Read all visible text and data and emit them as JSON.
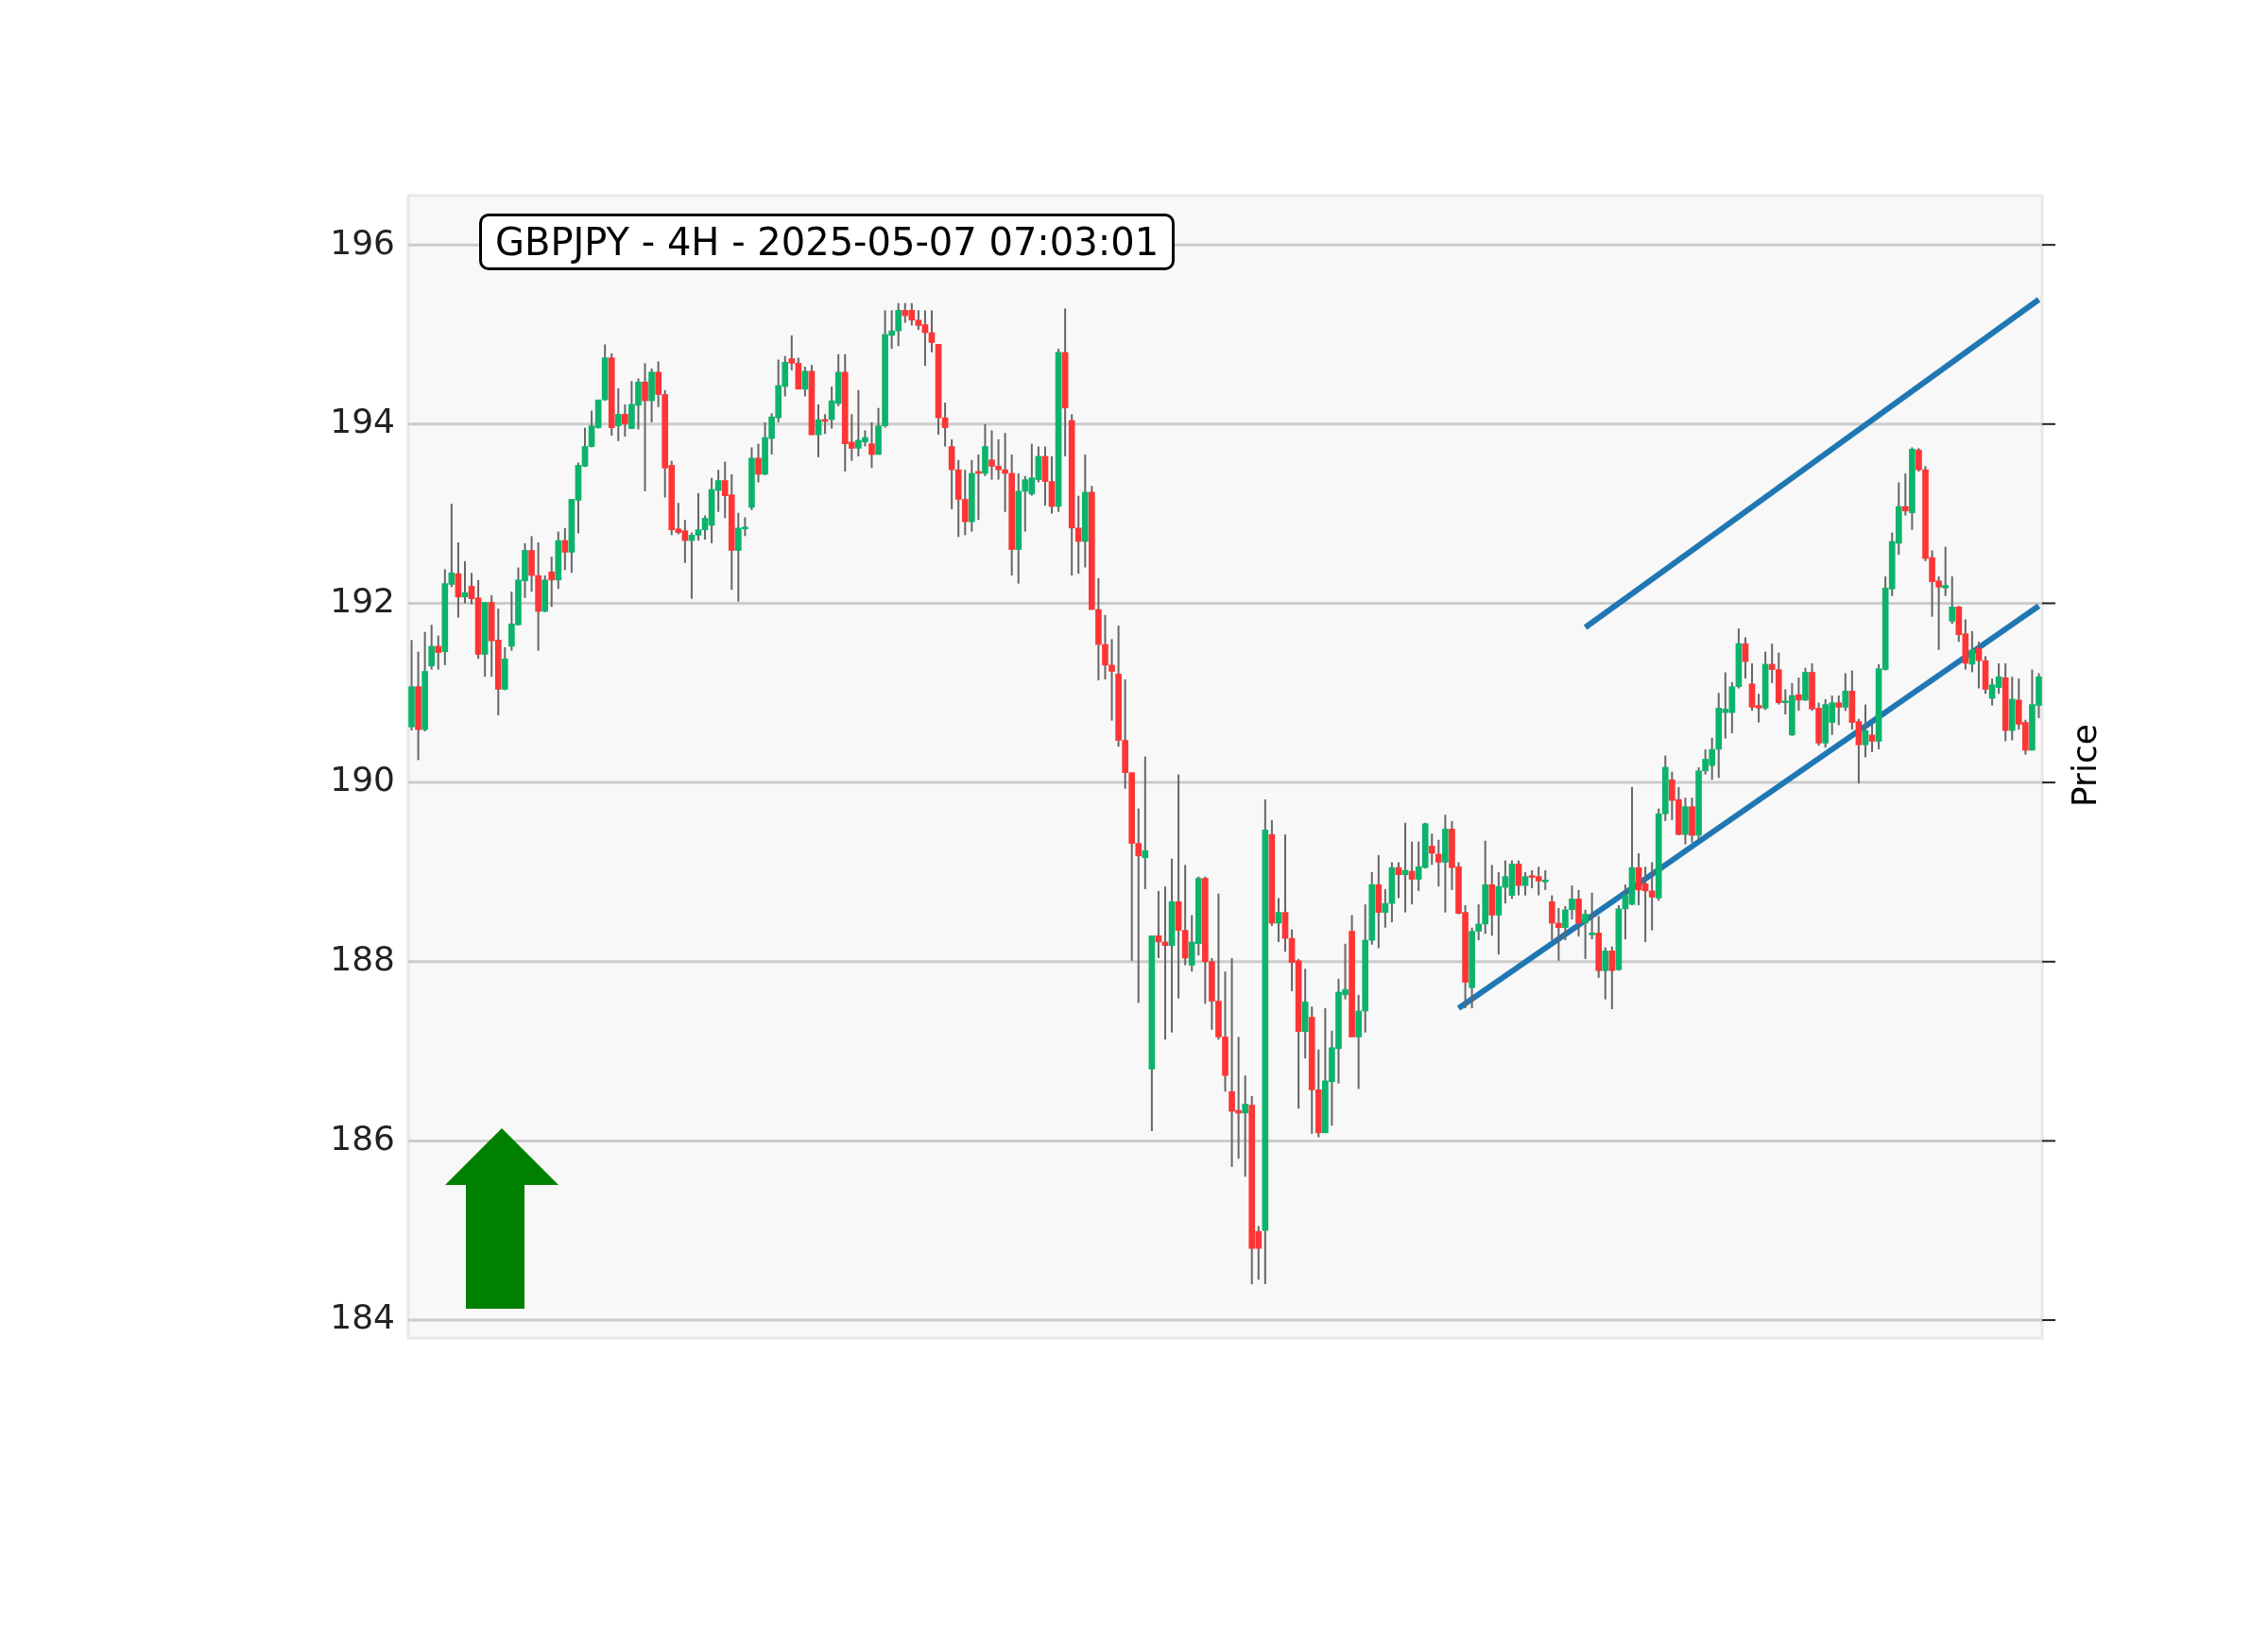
{
  "chart_data": {
    "type": "candlestick",
    "title": "GBPJPY - 4H - 2025-05-07 07:03:01",
    "categories": [
      null,
      null,
      null,
      null,
      null,
      null,
      null,
      null,
      null,
      null,
      null,
      null,
      null,
      null,
      null,
      null,
      null,
      null,
      null,
      null,
      null,
      null,
      null,
      null,
      null,
      null,
      null,
      null,
      null,
      null,
      null,
      null,
      null,
      null,
      null,
      null,
      null,
      null,
      null,
      null,
      null,
      null,
      null,
      null,
      null,
      null,
      null,
      null,
      null,
      null,
      null,
      null,
      null,
      null,
      null,
      null,
      null,
      null,
      null,
      null,
      null,
      null,
      null,
      null,
      null,
      null,
      null,
      null,
      null,
      null,
      null,
      null,
      null,
      null,
      null,
      null,
      null,
      null,
      null,
      null,
      null,
      null,
      null,
      null,
      null,
      null,
      null,
      null,
      null,
      null,
      null,
      null,
      null,
      null,
      null,
      null,
      null,
      null,
      null,
      null,
      null,
      null,
      null,
      null,
      null,
      null,
      null,
      null,
      null,
      null,
      null,
      null,
      null,
      null,
      null,
      null,
      null,
      null,
      null,
      null,
      null,
      null,
      null,
      null,
      null,
      null,
      null,
      null,
      null,
      null,
      null,
      null,
      null,
      null,
      null,
      null,
      null,
      null,
      null,
      null,
      null,
      null,
      null,
      null,
      null,
      null,
      null,
      null,
      null,
      null,
      null,
      null,
      null,
      null,
      null,
      null,
      null,
      null,
      null,
      null,
      null,
      null,
      null,
      null,
      null,
      null,
      null,
      null,
      null,
      null,
      null,
      null,
      null,
      null,
      null,
      null,
      null,
      null,
      null,
      null,
      null,
      null,
      null,
      null,
      null,
      null,
      null,
      null,
      null,
      null,
      null,
      null,
      null,
      null,
      null,
      null,
      null,
      null,
      null,
      null,
      null,
      null,
      null,
      null,
      null,
      null,
      null,
      null,
      null,
      null,
      null,
      null,
      null,
      null,
      null,
      null,
      null,
      null,
      null,
      null,
      null,
      null,
      null,
      null,
      null,
      null,
      null,
      null,
      null,
      null,
      null,
      null,
      null,
      null,
      null,
      null,
      null,
      null,
      null,
      null,
      null,
      null,
      null,
      null,
      null
    ],
    "ohlc": [
      [
        190.62,
        191.59,
        190.58,
        191.07
      ],
      [
        191.07,
        191.46,
        190.25,
        190.59
      ],
      [
        190.59,
        191.68,
        190.57,
        191.24
      ],
      [
        191.3,
        191.76,
        191.26,
        191.52
      ],
      [
        191.52,
        191.64,
        191.26,
        191.45
      ],
      [
        191.46,
        192.38,
        191.31,
        192.22
      ],
      [
        192.21,
        193.11,
        192.18,
        192.34
      ],
      [
        192.33,
        192.68,
        191.84,
        192.07
      ],
      [
        192.07,
        192.47,
        192.0,
        192.12
      ],
      [
        192.19,
        192.34,
        191.99,
        192.05
      ],
      [
        192.06,
        192.26,
        191.38,
        191.43
      ],
      [
        191.43,
        192.01,
        191.18,
        192.01
      ],
      [
        192.01,
        192.09,
        191.18,
        191.58
      ],
      [
        191.59,
        191.94,
        190.75,
        191.04
      ],
      [
        191.04,
        191.51,
        191.03,
        191.38
      ],
      [
        191.52,
        192.13,
        191.47,
        191.77
      ],
      [
        191.76,
        192.4,
        191.75,
        192.26
      ],
      [
        192.25,
        192.67,
        192.06,
        192.59
      ],
      [
        192.59,
        192.75,
        192.13,
        192.31
      ],
      [
        192.31,
        192.68,
        191.47,
        191.91
      ],
      [
        191.91,
        192.31,
        191.9,
        192.26
      ],
      [
        192.35,
        192.52,
        191.96,
        192.26
      ],
      [
        192.26,
        192.8,
        192.16,
        192.7
      ],
      [
        192.7,
        192.84,
        192.37,
        192.57
      ],
      [
        192.57,
        193.16,
        192.34,
        193.16
      ],
      [
        193.15,
        193.57,
        192.78,
        193.54
      ],
      [
        193.53,
        193.96,
        193.52,
        193.75
      ],
      [
        193.75,
        194.15,
        193.74,
        193.98
      ],
      [
        193.96,
        194.27,
        193.95,
        194.27
      ],
      [
        194.27,
        194.89,
        194.26,
        194.74
      ],
      [
        194.74,
        194.79,
        193.87,
        193.96
      ],
      [
        193.98,
        194.4,
        193.81,
        194.11
      ],
      [
        194.11,
        194.22,
        193.86,
        194.0
      ],
      [
        193.95,
        194.48,
        193.95,
        194.22
      ],
      [
        194.21,
        194.51,
        193.94,
        194.47
      ],
      [
        194.47,
        194.68,
        193.25,
        194.26
      ],
      [
        194.26,
        194.62,
        194.02,
        194.58
      ],
      [
        194.58,
        194.7,
        194.19,
        194.33
      ],
      [
        194.33,
        194.38,
        193.18,
        193.51
      ],
      [
        193.54,
        193.59,
        192.76,
        192.82
      ],
      [
        192.83,
        193.12,
        192.77,
        192.79
      ],
      [
        192.81,
        192.93,
        192.45,
        192.7
      ],
      [
        192.7,
        192.79,
        192.05,
        192.76
      ],
      [
        192.76,
        193.23,
        192.7,
        192.82
      ],
      [
        192.82,
        192.98,
        192.71,
        192.95
      ],
      [
        192.87,
        193.4,
        192.67,
        193.27
      ],
      [
        193.26,
        193.49,
        193.02,
        193.37
      ],
      [
        193.37,
        193.58,
        192.95,
        193.2
      ],
      [
        193.21,
        193.44,
        192.15,
        192.59
      ],
      [
        192.59,
        193.01,
        192.02,
        192.84
      ],
      [
        192.83,
        192.96,
        192.75,
        192.84
      ],
      [
        193.07,
        193.74,
        193.04,
        193.62
      ],
      [
        193.62,
        193.78,
        193.35,
        193.44
      ],
      [
        193.44,
        194.02,
        193.43,
        193.85
      ],
      [
        193.84,
        194.12,
        193.66,
        194.08
      ],
      [
        194.07,
        194.72,
        194.02,
        194.43
      ],
      [
        194.42,
        194.76,
        194.31,
        194.69
      ],
      [
        194.73,
        194.99,
        194.6,
        194.68
      ],
      [
        194.68,
        194.74,
        194.39,
        194.39
      ],
      [
        194.39,
        194.64,
        194.31,
        194.59
      ],
      [
        194.59,
        194.66,
        193.88,
        193.88
      ],
      [
        193.88,
        194.22,
        193.63,
        194.05
      ],
      [
        194.05,
        194.11,
        193.89,
        194.03
      ],
      [
        194.05,
        194.42,
        193.95,
        194.26
      ],
      [
        194.23,
        194.78,
        194.2,
        194.58
      ],
      [
        194.58,
        194.78,
        193.47,
        193.78
      ],
      [
        193.8,
        194.11,
        193.59,
        193.73
      ],
      [
        193.73,
        194.38,
        193.64,
        193.82
      ],
      [
        193.8,
        193.93,
        193.75,
        193.85
      ],
      [
        193.78,
        194.02,
        193.51,
        193.66
      ],
      [
        193.66,
        194.18,
        193.66,
        193.98
      ],
      [
        193.98,
        195.27,
        193.96,
        195.0
      ],
      [
        194.99,
        195.27,
        194.84,
        195.04
      ],
      [
        195.04,
        195.35,
        194.87,
        195.27
      ],
      [
        195.27,
        195.35,
        195.13,
        195.21
      ],
      [
        195.27,
        195.35,
        195.1,
        195.16
      ],
      [
        195.16,
        195.27,
        195.05,
        195.1
      ],
      [
        195.11,
        195.27,
        194.65,
        195.02
      ],
      [
        195.02,
        195.27,
        194.8,
        194.91
      ],
      [
        194.89,
        194.89,
        193.88,
        194.07
      ],
      [
        194.07,
        194.24,
        193.75,
        193.96
      ],
      [
        193.75,
        193.83,
        193.05,
        193.49
      ],
      [
        193.49,
        193.6,
        192.74,
        193.16
      ],
      [
        193.16,
        193.49,
        192.76,
        192.91
      ],
      [
        192.91,
        193.6,
        192.8,
        193.45
      ],
      [
        193.47,
        193.66,
        192.93,
        193.45
      ],
      [
        193.45,
        194.0,
        193.42,
        193.75
      ],
      [
        193.6,
        193.93,
        193.38,
        193.53
      ],
      [
        193.53,
        193.83,
        193.38,
        193.49
      ],
      [
        193.49,
        193.9,
        193.02,
        193.45
      ],
      [
        193.45,
        193.66,
        192.31,
        192.6
      ],
      [
        192.6,
        193.45,
        192.22,
        193.25
      ],
      [
        193.25,
        193.42,
        192.8,
        193.38
      ],
      [
        193.22,
        193.78,
        193.2,
        193.4
      ],
      [
        193.38,
        193.75,
        193.35,
        193.64
      ],
      [
        193.64,
        193.75,
        193.09,
        193.36
      ],
      [
        193.36,
        193.64,
        193.0,
        193.08
      ],
      [
        193.08,
        194.84,
        193.02,
        194.8
      ],
      [
        194.8,
        195.29,
        193.64,
        194.18
      ],
      [
        194.04,
        194.11,
        192.31,
        192.84
      ],
      [
        192.84,
        193.2,
        192.33,
        192.69
      ],
      [
        192.69,
        193.66,
        192.4,
        193.24
      ],
      [
        193.24,
        193.31,
        191.93,
        191.93
      ],
      [
        191.93,
        192.28,
        191.14,
        191.54
      ],
      [
        191.54,
        191.87,
        191.15,
        191.31
      ],
      [
        191.31,
        191.6,
        190.69,
        191.24
      ],
      [
        191.21,
        191.75,
        190.4,
        190.47
      ],
      [
        190.47,
        191.15,
        189.93,
        190.11
      ],
      [
        190.11,
        190.11,
        188.01,
        189.32
      ],
      [
        189.32,
        189.71,
        187.54,
        189.18
      ],
      [
        189.16,
        190.29,
        188.81,
        189.24
      ],
      [
        186.8,
        188.29,
        186.11,
        188.29
      ],
      [
        188.29,
        188.79,
        188.04,
        188.22
      ],
      [
        188.22,
        188.84,
        187.13,
        188.18
      ],
      [
        188.18,
        189.15,
        187.21,
        188.67
      ],
      [
        188.67,
        190.09,
        187.59,
        188.35
      ],
      [
        188.35,
        189.08,
        187.96,
        188.04
      ],
      [
        187.96,
        188.52,
        187.89,
        188.22
      ],
      [
        188.2,
        188.95,
        188.07,
        188.93
      ],
      [
        188.93,
        188.95,
        187.53,
        188.0
      ],
      [
        188.0,
        188.04,
        187.24,
        187.56
      ],
      [
        187.56,
        188.76,
        187.13,
        187.16
      ],
      [
        187.16,
        187.89,
        186.55,
        186.73
      ],
      [
        186.55,
        188.04,
        185.71,
        186.33
      ],
      [
        186.34,
        187.16,
        185.8,
        186.31
      ],
      [
        186.31,
        186.73,
        185.6,
        186.41
      ],
      [
        186.4,
        186.5,
        184.4,
        184.8
      ],
      [
        184.99,
        185.05,
        184.45,
        184.8
      ],
      [
        185.0,
        189.81,
        184.4,
        189.47
      ],
      [
        189.42,
        189.58,
        188.4,
        188.43
      ],
      [
        188.43,
        188.71,
        188.22,
        188.55
      ],
      [
        188.55,
        189.42,
        188.11,
        188.26
      ],
      [
        188.26,
        188.36,
        187.67,
        187.99
      ],
      [
        188.01,
        188.03,
        186.36,
        187.22
      ],
      [
        187.22,
        187.92,
        186.92,
        187.55
      ],
      [
        187.38,
        187.5,
        186.08,
        186.57
      ],
      [
        186.57,
        187.02,
        186.04,
        186.09
      ],
      [
        186.09,
        187.48,
        186.09,
        186.67
      ],
      [
        186.66,
        187.23,
        186.17,
        187.04
      ],
      [
        187.03,
        187.81,
        186.64,
        187.66
      ],
      [
        187.63,
        188.2,
        187.58,
        187.69
      ],
      [
        188.34,
        188.52,
        187.16,
        187.16
      ],
      [
        187.16,
        187.63,
        186.58,
        187.45
      ],
      [
        187.45,
        188.64,
        187.21,
        188.24
      ],
      [
        188.24,
        189.0,
        188.19,
        188.86
      ],
      [
        188.86,
        189.19,
        188.15,
        188.55
      ],
      [
        188.55,
        188.81,
        188.38,
        188.65
      ],
      [
        188.65,
        189.11,
        188.44,
        189.05
      ],
      [
        189.05,
        189.11,
        188.71,
        188.97
      ],
      [
        188.97,
        189.55,
        188.55,
        189.02
      ],
      [
        189.01,
        189.34,
        188.64,
        188.92
      ],
      [
        188.92,
        189.34,
        188.79,
        189.06
      ],
      [
        189.05,
        189.55,
        189.04,
        189.54
      ],
      [
        189.29,
        189.43,
        189.08,
        189.21
      ],
      [
        189.2,
        189.36,
        188.84,
        189.11
      ],
      [
        189.11,
        189.64,
        188.55,
        189.48
      ],
      [
        189.48,
        189.57,
        188.8,
        189.05
      ],
      [
        189.06,
        189.11,
        188.53,
        188.54
      ],
      [
        188.55,
        188.63,
        187.48,
        187.77
      ],
      [
        187.71,
        188.38,
        187.48,
        188.34
      ],
      [
        188.34,
        188.64,
        188.24,
        188.42
      ],
      [
        188.42,
        189.35,
        188.31,
        188.86
      ],
      [
        188.86,
        189.08,
        188.29,
        188.52
      ],
      [
        188.52,
        189.0,
        188.08,
        188.84
      ],
      [
        188.83,
        189.13,
        188.65,
        188.95
      ],
      [
        188.74,
        189.13,
        188.7,
        189.09
      ],
      [
        189.09,
        189.13,
        188.74,
        188.85
      ],
      [
        188.85,
        189.0,
        188.74,
        188.95
      ],
      [
        188.95,
        189.02,
        188.82,
        188.94
      ],
      [
        188.95,
        189.06,
        188.74,
        188.9
      ],
      [
        188.89,
        189.02,
        188.8,
        188.91
      ],
      [
        188.67,
        188.74,
        188.24,
        188.43
      ],
      [
        188.43,
        188.6,
        188.01,
        188.38
      ],
      [
        188.38,
        188.62,
        188.24,
        188.58
      ],
      [
        188.58,
        188.85,
        188.47,
        188.7
      ],
      [
        188.7,
        188.8,
        188.28,
        188.43
      ],
      [
        188.43,
        188.58,
        188.03,
        188.53
      ],
      [
        188.3,
        188.77,
        188.25,
        188.32
      ],
      [
        188.32,
        188.51,
        187.82,
        187.9
      ],
      [
        187.9,
        188.16,
        187.58,
        188.12
      ],
      [
        188.12,
        188.17,
        187.47,
        187.9
      ],
      [
        187.91,
        188.63,
        187.9,
        188.59
      ],
      [
        188.59,
        188.86,
        188.25,
        188.74
      ],
      [
        188.64,
        189.95,
        188.63,
        189.05
      ],
      [
        189.05,
        189.21,
        188.63,
        188.8
      ],
      [
        188.87,
        189.06,
        188.22,
        188.79
      ],
      [
        188.79,
        189.11,
        188.35,
        188.72
      ],
      [
        188.71,
        189.71,
        188.68,
        189.65
      ],
      [
        189.65,
        190.3,
        189.57,
        190.17
      ],
      [
        190.03,
        190.12,
        189.58,
        189.8
      ],
      [
        189.81,
        189.95,
        189.41,
        189.42
      ],
      [
        189.42,
        189.83,
        189.31,
        189.73
      ],
      [
        189.73,
        189.83,
        189.33,
        189.41
      ],
      [
        189.41,
        190.17,
        189.36,
        190.13
      ],
      [
        190.13,
        190.37,
        190.09,
        190.26
      ],
      [
        190.19,
        190.5,
        190.03,
        190.37
      ],
      [
        190.37,
        191.0,
        190.05,
        190.83
      ],
      [
        190.78,
        191.23,
        190.49,
        190.82
      ],
      [
        190.78,
        191.12,
        190.55,
        191.07
      ],
      [
        191.07,
        191.72,
        191.05,
        191.55
      ],
      [
        191.55,
        191.62,
        191.16,
        191.35
      ],
      [
        191.1,
        191.33,
        190.8,
        190.84
      ],
      [
        190.86,
        190.99,
        190.67,
        190.83
      ],
      [
        190.83,
        191.46,
        190.81,
        191.32
      ],
      [
        191.32,
        191.55,
        191.11,
        191.26
      ],
      [
        191.26,
        191.45,
        190.87,
        190.89
      ],
      [
        190.89,
        191.04,
        190.76,
        190.91
      ],
      [
        190.53,
        191.11,
        190.52,
        190.97
      ],
      [
        190.98,
        191.17,
        190.8,
        190.92
      ],
      [
        190.92,
        191.28,
        190.91,
        191.23
      ],
      [
        191.23,
        191.33,
        190.8,
        190.82
      ],
      [
        190.83,
        190.89,
        190.41,
        190.44
      ],
      [
        190.44,
        190.93,
        190.39,
        190.87
      ],
      [
        190.67,
        190.97,
        190.53,
        190.89
      ],
      [
        190.89,
        190.97,
        190.64,
        190.84
      ],
      [
        190.84,
        191.22,
        190.8,
        191.02
      ],
      [
        191.02,
        191.25,
        190.59,
        190.67
      ],
      [
        190.68,
        190.71,
        189.99,
        190.42
      ],
      [
        190.42,
        190.87,
        190.28,
        190.58
      ],
      [
        190.53,
        190.65,
        190.34,
        190.46
      ],
      [
        190.46,
        191.32,
        190.37,
        191.27
      ],
      [
        191.26,
        192.3,
        191.25,
        192.17
      ],
      [
        192.16,
        192.79,
        192.08,
        192.69
      ],
      [
        192.67,
        193.35,
        192.54,
        193.08
      ],
      [
        193.08,
        193.45,
        192.98,
        193.03
      ],
      [
        193.01,
        193.74,
        192.82,
        193.72
      ],
      [
        193.71,
        193.73,
        193.47,
        193.49
      ],
      [
        193.49,
        193.53,
        192.47,
        192.5
      ],
      [
        192.51,
        192.59,
        191.85,
        192.24
      ],
      [
        192.25,
        192.3,
        191.48,
        192.18
      ],
      [
        192.17,
        192.63,
        192.08,
        192.2
      ],
      [
        191.8,
        192.3,
        191.77,
        191.96
      ],
      [
        191.96,
        191.97,
        191.57,
        191.65
      ],
      [
        191.66,
        191.82,
        191.26,
        191.33
      ],
      [
        191.32,
        191.69,
        191.23,
        191.48
      ],
      [
        191.5,
        191.57,
        191.05,
        191.36
      ],
      [
        191.36,
        191.41,
        190.99,
        191.04
      ],
      [
        190.94,
        191.16,
        190.86,
        191.09
      ],
      [
        191.06,
        191.33,
        190.99,
        191.18
      ],
      [
        191.17,
        191.33,
        190.46,
        190.58
      ],
      [
        190.58,
        191.18,
        190.47,
        190.93
      ],
      [
        190.92,
        191.16,
        190.59,
        190.65
      ],
      [
        190.67,
        190.7,
        190.31,
        190.36
      ],
      [
        190.36,
        191.26,
        190.36,
        190.87
      ],
      [
        190.86,
        191.22,
        190.72,
        191.18
      ]
    ],
    "series": [
      {
        "type": "line",
        "color": "#1f77b4",
        "values": [
          null,
          null,
          null,
          null,
          null,
          null,
          null,
          null,
          null,
          null,
          null,
          null,
          null,
          null,
          null,
          null,
          null,
          null,
          null,
          null,
          null,
          null,
          null,
          null,
          null,
          null,
          null,
          null,
          null,
          null,
          null,
          null,
          null,
          null,
          null,
          null,
          null,
          null,
          null,
          null,
          null,
          null,
          null,
          null,
          null,
          null,
          null,
          null,
          null,
          null,
          null,
          null,
          null,
          null,
          null,
          null,
          null,
          null,
          null,
          null,
          null,
          null,
          null,
          null,
          null,
          null,
          null,
          null,
          null,
          null,
          null,
          null,
          null,
          null,
          null,
          null,
          null,
          null,
          null,
          null,
          null,
          null,
          null,
          null,
          null,
          null,
          null,
          null,
          null,
          null,
          null,
          null,
          null,
          null,
          null,
          null,
          null,
          null,
          null,
          null,
          null,
          null,
          null,
          null,
          null,
          null,
          null,
          null,
          null,
          null,
          null,
          null,
          null,
          null,
          null,
          null,
          null,
          null,
          null,
          null,
          null,
          null,
          null,
          null,
          null,
          null,
          null,
          null,
          null,
          null,
          null,
          null,
          null,
          null,
          null,
          null,
          null,
          null,
          null,
          null,
          null,
          null,
          null,
          null,
          null,
          null,
          null,
          null,
          null,
          null,
          null,
          null,
          null,
          null,
          null,
          null,
          null,
          187.48,
          null,
          null,
          null,
          null,
          null,
          null,
          null,
          null,
          null,
          null,
          null,
          null,
          null,
          null,
          null,
          null,
          null,
          null,
          null,
          null,
          null,
          null,
          null,
          null,
          null,
          null,
          null,
          null,
          null,
          null,
          null,
          null,
          null,
          null,
          null,
          null,
          null,
          null,
          null,
          null,
          null,
          null,
          null,
          null,
          null,
          null,
          null,
          null,
          null,
          null,
          null,
          null,
          null,
          null,
          null,
          null,
          null,
          null,
          null,
          null,
          null,
          null,
          null,
          null,
          null,
          null,
          null,
          null,
          null,
          null,
          null,
          null,
          null,
          null,
          null,
          null,
          null,
          null,
          null,
          null,
          null,
          null,
          null,
          null,
          null,
          null,
          191.97
        ]
      },
      {
        "type": "line",
        "color": "#1f77b4",
        "values": [
          null,
          null,
          null,
          null,
          null,
          null,
          null,
          null,
          null,
          null,
          null,
          null,
          null,
          null,
          null,
          null,
          null,
          null,
          null,
          null,
          null,
          null,
          null,
          null,
          null,
          null,
          null,
          null,
          null,
          null,
          null,
          null,
          null,
          null,
          null,
          null,
          null,
          null,
          null,
          null,
          null,
          null,
          null,
          null,
          null,
          null,
          null,
          null,
          null,
          null,
          null,
          null,
          null,
          null,
          null,
          null,
          null,
          null,
          null,
          null,
          null,
          null,
          null,
          null,
          null,
          null,
          null,
          null,
          null,
          null,
          null,
          null,
          null,
          null,
          null,
          null,
          null,
          null,
          null,
          null,
          null,
          null,
          null,
          null,
          null,
          null,
          null,
          null,
          null,
          null,
          null,
          null,
          null,
          null,
          null,
          null,
          null,
          null,
          null,
          null,
          null,
          null,
          null,
          null,
          null,
          null,
          null,
          null,
          null,
          null,
          null,
          null,
          null,
          null,
          null,
          null,
          null,
          null,
          null,
          null,
          null,
          null,
          null,
          null,
          null,
          null,
          null,
          null,
          null,
          null,
          null,
          null,
          null,
          null,
          null,
          null,
          null,
          null,
          null,
          null,
          null,
          null,
          null,
          null,
          null,
          null,
          null,
          null,
          null,
          null,
          null,
          null,
          null,
          null,
          null,
          null,
          null,
          null,
          null,
          null,
          null,
          null,
          null,
          null,
          null,
          null,
          null,
          null,
          null,
          null,
          null,
          null,
          null,
          null,
          null,
          null,
          191.73,
          null,
          null,
          null,
          null,
          null,
          null,
          null,
          null,
          null,
          null,
          null,
          null,
          null,
          null,
          null,
          null,
          null,
          null,
          null,
          null,
          null,
          null,
          null,
          null,
          null,
          null,
          null,
          null,
          null,
          null,
          null,
          null,
          null,
          null,
          null,
          null,
          null,
          null,
          null,
          null,
          null,
          null,
          null,
          null,
          null,
          null,
          null,
          null,
          null,
          null,
          null,
          null,
          null,
          null,
          null,
          null,
          null,
          null,
          null,
          null,
          null,
          null,
          null,
          null,
          null,
          null,
          null,
          195.39
        ]
      }
    ],
    "ylim": [
      183.8,
      196.55
    ],
    "yticks": [
      184,
      186,
      188,
      190,
      192,
      194,
      196
    ],
    "ylabel": "Price",
    "grid": "y",
    "tick_labels": "y"
  }
}
